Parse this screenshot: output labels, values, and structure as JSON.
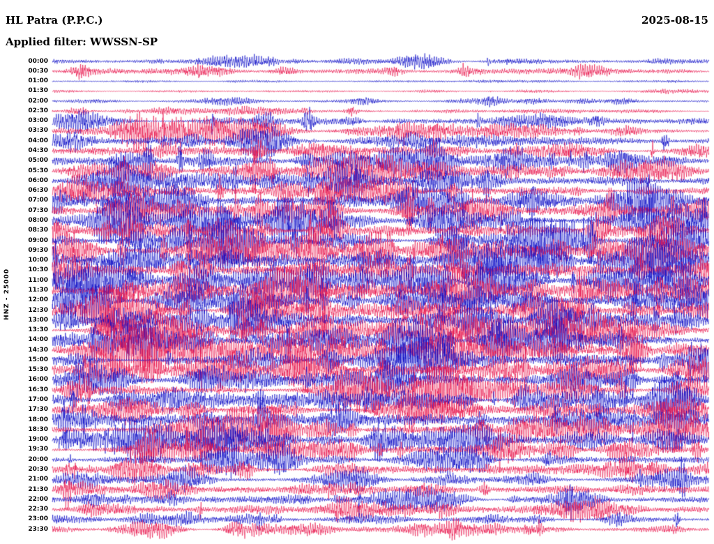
{
  "header": {
    "title": "HL Patra (P.P.C.)",
    "date": "2025-08-15",
    "filter_label": "Applied filter: WWSSN-SP"
  },
  "y_axis": {
    "label": "HNZ - 25000"
  },
  "chart_data": {
    "type": "line",
    "subtype": "helicorder-seismogram",
    "title": "HL Patra (P.P.C.)",
    "date": "2025-08-15",
    "filter": "WWSSN-SP",
    "channel_scale_label": "HNZ - 25000",
    "minutes_per_row": 30,
    "x_range_minutes": [
      0,
      30
    ],
    "grid": false,
    "legend": false,
    "trace_colors": {
      "even_rows": "#0b0bc6",
      "odd_rows": "#e8134a"
    },
    "rows": [
      {
        "time": "00:00",
        "color": "#0b0bc6",
        "activity": 0.25
      },
      {
        "time": "00:30",
        "color": "#e8134a",
        "activity": 0.3
      },
      {
        "time": "01:00",
        "color": "#0b0bc6",
        "activity": 0.05
      },
      {
        "time": "01:30",
        "color": "#e8134a",
        "activity": 0.07
      },
      {
        "time": "02:00",
        "color": "#0b0bc6",
        "activity": 0.15
      },
      {
        "time": "02:30",
        "color": "#e8134a",
        "activity": 0.2
      },
      {
        "time": "03:00",
        "color": "#0b0bc6",
        "activity": 0.38
      },
      {
        "time": "03:30",
        "color": "#e8134a",
        "activity": 0.5
      },
      {
        "time": "04:00",
        "color": "#0b0bc6",
        "activity": 0.45
      },
      {
        "time": "04:30",
        "color": "#e8134a",
        "activity": 0.42
      },
      {
        "time": "05:00",
        "color": "#0b0bc6",
        "activity": 0.6
      },
      {
        "time": "05:30",
        "color": "#e8134a",
        "activity": 0.55
      },
      {
        "time": "06:00",
        "color": "#0b0bc6",
        "activity": 0.5
      },
      {
        "time": "06:30",
        "color": "#e8134a",
        "activity": 0.52
      },
      {
        "time": "07:00",
        "color": "#0b0bc6",
        "activity": 0.62
      },
      {
        "time": "07:30",
        "color": "#e8134a",
        "activity": 0.65
      },
      {
        "time": "08:00",
        "color": "#0b0bc6",
        "activity": 0.7
      },
      {
        "time": "08:30",
        "color": "#e8134a",
        "activity": 0.66
      },
      {
        "time": "09:00",
        "color": "#0b0bc6",
        "activity": 0.7
      },
      {
        "time": "09:30",
        "color": "#e8134a",
        "activity": 0.7
      },
      {
        "time": "10:00",
        "color": "#0b0bc6",
        "activity": 0.74
      },
      {
        "time": "10:30",
        "color": "#e8134a",
        "activity": 0.7
      },
      {
        "time": "11:00",
        "color": "#0b0bc6",
        "activity": 0.75
      },
      {
        "time": "11:30",
        "color": "#e8134a",
        "activity": 0.72
      },
      {
        "time": "12:00",
        "color": "#0b0bc6",
        "activity": 0.75
      },
      {
        "time": "12:30",
        "color": "#e8134a",
        "activity": 0.72
      },
      {
        "time": "13:00",
        "color": "#0b0bc6",
        "activity": 0.7
      },
      {
        "time": "13:30",
        "color": "#e8134a",
        "activity": 0.72
      },
      {
        "time": "14:00",
        "color": "#0b0bc6",
        "activity": 0.75
      },
      {
        "time": "14:30",
        "color": "#e8134a",
        "activity": 0.7
      },
      {
        "time": "15:00",
        "color": "#0b0bc6",
        "activity": 0.66
      },
      {
        "time": "15:30",
        "color": "#e8134a",
        "activity": 0.66
      },
      {
        "time": "16:00",
        "color": "#0b0bc6",
        "activity": 0.62
      },
      {
        "time": "16:30",
        "color": "#e8134a",
        "activity": 0.6
      },
      {
        "time": "17:00",
        "color": "#0b0bc6",
        "activity": 0.6
      },
      {
        "time": "17:30",
        "color": "#e8134a",
        "activity": 0.56
      },
      {
        "time": "18:00",
        "color": "#0b0bc6",
        "activity": 0.6
      },
      {
        "time": "18:30",
        "color": "#e8134a",
        "activity": 0.66
      },
      {
        "time": "19:00",
        "color": "#0b0bc6",
        "activity": 0.62
      },
      {
        "time": "19:30",
        "color": "#e8134a",
        "activity": 0.5
      },
      {
        "time": "20:00",
        "color": "#0b0bc6",
        "activity": 0.46
      },
      {
        "time": "20:30",
        "color": "#e8134a",
        "activity": 0.46
      },
      {
        "time": "21:00",
        "color": "#0b0bc6",
        "activity": 0.4
      },
      {
        "time": "21:30",
        "color": "#e8134a",
        "activity": 0.36
      },
      {
        "time": "22:00",
        "color": "#0b0bc6",
        "activity": 0.46
      },
      {
        "time": "22:30",
        "color": "#e8134a",
        "activity": 0.36
      },
      {
        "time": "23:00",
        "color": "#0b0bc6",
        "activity": 0.3
      },
      {
        "time": "23:30",
        "color": "#e8134a",
        "activity": 0.36
      }
    ]
  }
}
